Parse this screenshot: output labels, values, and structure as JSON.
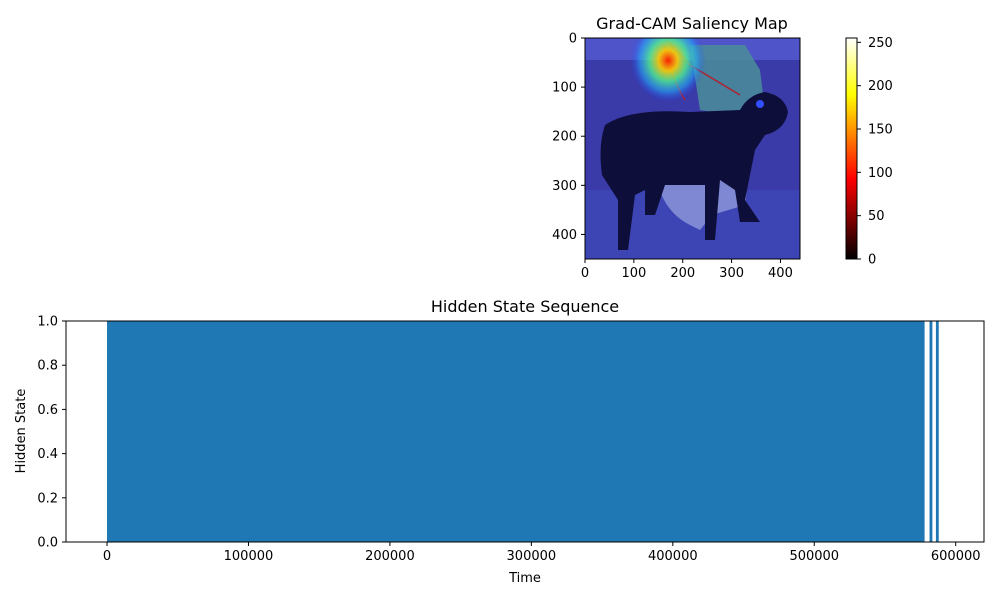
{
  "chart_data": [
    {
      "type": "heatmap",
      "title": "Grad-CAM Saliency Map",
      "xlabel": "",
      "ylabel": "",
      "image_extent": {
        "width": 440,
        "height": 450
      },
      "xticks": [
        0,
        100,
        200,
        300,
        400
      ],
      "yticks": [
        0,
        100,
        200,
        300,
        400
      ],
      "xlim": [
        0,
        440
      ],
      "ylim": [
        450,
        0
      ],
      "image_description": "photo of a black-and-tan dog on a leash beside a kneeling person, overlaid with a jet-colormap heatmap; hottest region near the top center",
      "hotspot": {
        "x": 170,
        "y": 15
      },
      "colorbar": {
        "colormap": "hot",
        "min": 0,
        "max": 255,
        "ticks": [
          0,
          50,
          100,
          150,
          200,
          250
        ]
      }
    },
    {
      "type": "bar",
      "title": "Hidden State Sequence",
      "xlabel": "Time",
      "ylabel": "Hidden State",
      "xlim": [
        -29000,
        620000
      ],
      "ylim": [
        0,
        1
      ],
      "xticks": [
        0,
        100000,
        200000,
        300000,
        400000,
        500000,
        600000
      ],
      "yticks": [
        "0.0",
        "0.2",
        "0.4",
        "0.6",
        "0.8",
        "1.0"
      ],
      "color": "#1f77b4",
      "segments": [
        {
          "start": 0,
          "end": 578000,
          "value": 1
        },
        {
          "start": 581500,
          "end": 583500,
          "value": 1
        },
        {
          "start": 586000,
          "end": 588000,
          "value": 1
        }
      ]
    }
  ]
}
